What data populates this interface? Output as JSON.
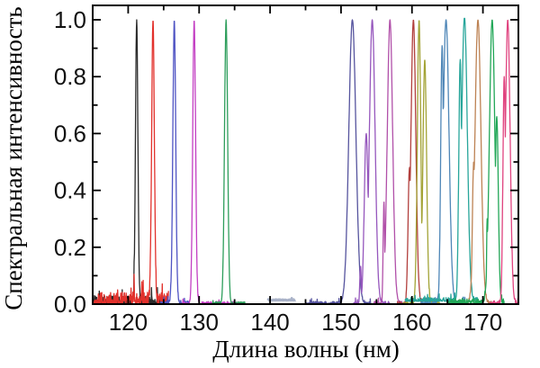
{
  "chart_data": {
    "type": "line",
    "title": "",
    "xlabel": "Длина волны (нм)",
    "ylabel": "Спектральная интенсивность",
    "xlim": [
      115,
      175
    ],
    "ylim": [
      0,
      1.05
    ],
    "grid": false,
    "legend": "none",
    "frame": {
      "color": "#000000",
      "ticks": "inward-all-sides"
    },
    "x_ticks": {
      "major": [
        120,
        130,
        140,
        150,
        160,
        170
      ],
      "labels": [
        "120",
        "130",
        "140",
        "150",
        "160",
        "170"
      ],
      "minor": [
        125,
        135,
        145,
        155,
        165
      ]
    },
    "y_ticks": {
      "major": [
        0,
        0.2,
        0.4,
        0.6,
        0.8,
        1.0
      ],
      "labels": [
        "0.0",
        "0.2",
        "0.4",
        "0.6",
        "0.8",
        "1.0"
      ],
      "minor": [
        0.1,
        0.3,
        0.5,
        0.7,
        0.9
      ]
    },
    "series": [
      {
        "name": "peak-121.2nm",
        "color": "#2a2a2a",
        "range": [
          115.0,
          124.6
        ],
        "noise": 0.03,
        "peaks": [
          {
            "c": 121.2,
            "h": 1.0,
            "w": 0.17
          }
        ]
      },
      {
        "name": "peak-123.5nm",
        "color": "#e2312c",
        "range": [
          115.0,
          125.7
        ],
        "noise": 0.042,
        "peaks": [
          {
            "c": 123.5,
            "h": 1.0,
            "w": 0.19
          }
        ]
      },
      {
        "name": "peak-126.5nm",
        "color": "#4f53c3",
        "range": [
          124.6,
          128.6
        ],
        "noise": 0.012,
        "peaks": [
          {
            "c": 126.5,
            "h": 1.0,
            "w": 0.2
          },
          {
            "c": 126.05,
            "h": 0.07,
            "w": 0.08
          }
        ]
      },
      {
        "name": "peak-129.3nm",
        "color": "#c33fc3",
        "range": [
          127.6,
          135.4
        ],
        "noise": 0.009,
        "peaks": [
          {
            "c": 129.3,
            "h": 1.0,
            "w": 0.2
          }
        ]
      },
      {
        "name": "peak-133.8nm",
        "color": "#2e9e5c",
        "range": [
          131.8,
          136.5
        ],
        "noise": 0.009,
        "peaks": [
          {
            "c": 133.8,
            "h": 1.0,
            "w": 0.22
          }
        ]
      },
      {
        "name": "baseline-trace-141nm",
        "color": "#a9b2c8",
        "range": [
          139.7,
          143.6
        ],
        "noise": 0.004,
        "base": 0.013,
        "sw": 2.5,
        "peaks": []
      },
      {
        "name": "peak-151.6nm",
        "color": "#56549e",
        "range": [
          145.0,
          154.2
        ],
        "noise": 0.01,
        "peaks": [
          {
            "c": 151.6,
            "h": 1.0,
            "w": 0.5
          }
        ]
      },
      {
        "name": "peak-154.4nm",
        "color": "#9657bd",
        "range": [
          151.8,
          156.9
        ],
        "noise": 0.01,
        "peaks": [
          {
            "c": 154.4,
            "h": 1.0,
            "w": 0.4
          },
          {
            "c": 153.55,
            "h": 0.6,
            "w": 0.27
          },
          {
            "c": 152.75,
            "h": 0.13,
            "w": 0.1
          }
        ]
      },
      {
        "name": "peak-156.9nm",
        "color": "#b150a9",
        "range": [
          154.5,
          159.2
        ],
        "noise": 0.01,
        "peaks": [
          {
            "c": 156.9,
            "h": 1.0,
            "w": 0.38
          },
          {
            "c": 156.05,
            "h": 0.36,
            "w": 0.11
          }
        ]
      },
      {
        "name": "peak-160.2nm",
        "color": "#b23f3d",
        "range": [
          157.9,
          162.2
        ],
        "noise": 0.01,
        "peaks": [
          {
            "c": 160.2,
            "h": 1.0,
            "w": 0.34
          },
          {
            "c": 159.65,
            "h": 0.48,
            "w": 0.2
          }
        ]
      },
      {
        "name": "peak-161.0nm-doublet",
        "color": "#a3a336",
        "range": [
          158.7,
          163.9
        ],
        "noise": 0.012,
        "peaks": [
          {
            "c": 161.0,
            "h": 1.0,
            "w": 0.24
          },
          {
            "c": 161.8,
            "h": 0.86,
            "w": 0.26
          }
        ]
      },
      {
        "name": "peak-164.8nm-twin-top",
        "color": "#4e86b7",
        "range": [
          161.2,
          167.5
        ],
        "noise": 0.012,
        "peaks": [
          {
            "c": 164.8,
            "h": 1.0,
            "w": 0.42
          },
          {
            "c": 164.25,
            "h": 0.91,
            "w": 0.2
          }
        ]
      },
      {
        "name": "peak-167.4nm",
        "color": "#28a69b",
        "range": [
          159.0,
          169.4
        ],
        "noise": 0.013,
        "base": 0.01,
        "peaks": [
          {
            "c": 167.4,
            "h": 1.0,
            "w": 0.4
          },
          {
            "c": 166.8,
            "h": 0.85,
            "w": 0.2
          }
        ]
      },
      {
        "name": "peak-169.3nm",
        "color": "#bd8253",
        "range": [
          166.4,
          171.2
        ],
        "noise": 0.01,
        "peaks": [
          {
            "c": 169.3,
            "h": 1.0,
            "w": 0.42
          },
          {
            "c": 168.7,
            "h": 0.5,
            "w": 0.18
          }
        ]
      },
      {
        "name": "peak-171.3nm",
        "color": "#21a757",
        "range": [
          165.0,
          173.0
        ],
        "noise": 0.02,
        "peaks": [
          {
            "c": 171.3,
            "h": 1.0,
            "w": 0.38
          },
          {
            "c": 171.95,
            "h": 0.66,
            "w": 0.22
          },
          {
            "c": 170.6,
            "h": 0.3,
            "w": 0.07
          }
        ]
      },
      {
        "name": "peak-173.5nm",
        "color": "#e0437f",
        "range": [
          171.0,
          175.0
        ],
        "noise": 0.012,
        "peaks": [
          {
            "c": 173.5,
            "h": 1.0,
            "w": 0.33
          },
          {
            "c": 173.0,
            "h": 0.8,
            "w": 0.18
          }
        ]
      }
    ]
  },
  "style": {
    "tick_label_color": "#111111",
    "frame_color": "#000000"
  }
}
